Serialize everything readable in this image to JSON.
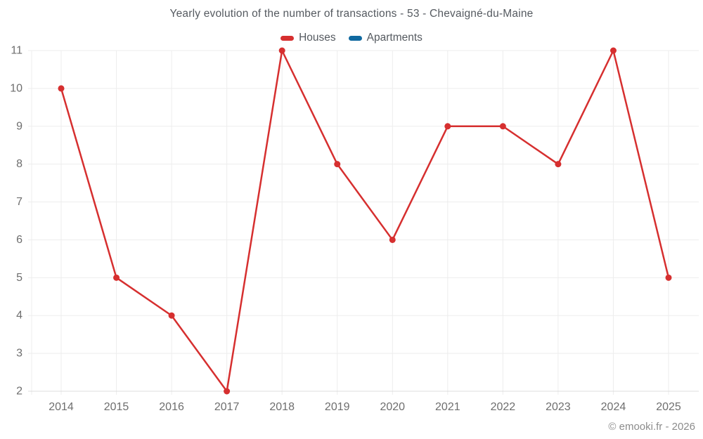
{
  "chart_data": {
    "type": "line",
    "title": "Yearly evolution of the number of transactions - 53 - Chevaigné-du-Maine",
    "categories": [
      "2014",
      "2015",
      "2016",
      "2017",
      "2018",
      "2019",
      "2020",
      "2021",
      "2022",
      "2023",
      "2024",
      "2025"
    ],
    "series": [
      {
        "name": "Houses",
        "color": "#d62f2f",
        "values": [
          10,
          5,
          4,
          2,
          11,
          8,
          6,
          9,
          9,
          8,
          11,
          5
        ]
      },
      {
        "name": "Apartments",
        "color": "#1069a0",
        "values": []
      }
    ],
    "ylim": [
      2,
      11
    ],
    "yticks": [
      2,
      3,
      4,
      5,
      6,
      7,
      8,
      9,
      10,
      11
    ],
    "grid": true,
    "legend_position": "top",
    "grid_color": "#ededed",
    "axis_line_color": "#dcdcdc",
    "tick_label_color": "#6e6e6e"
  },
  "attribution": "© emooki.fr - 2026"
}
